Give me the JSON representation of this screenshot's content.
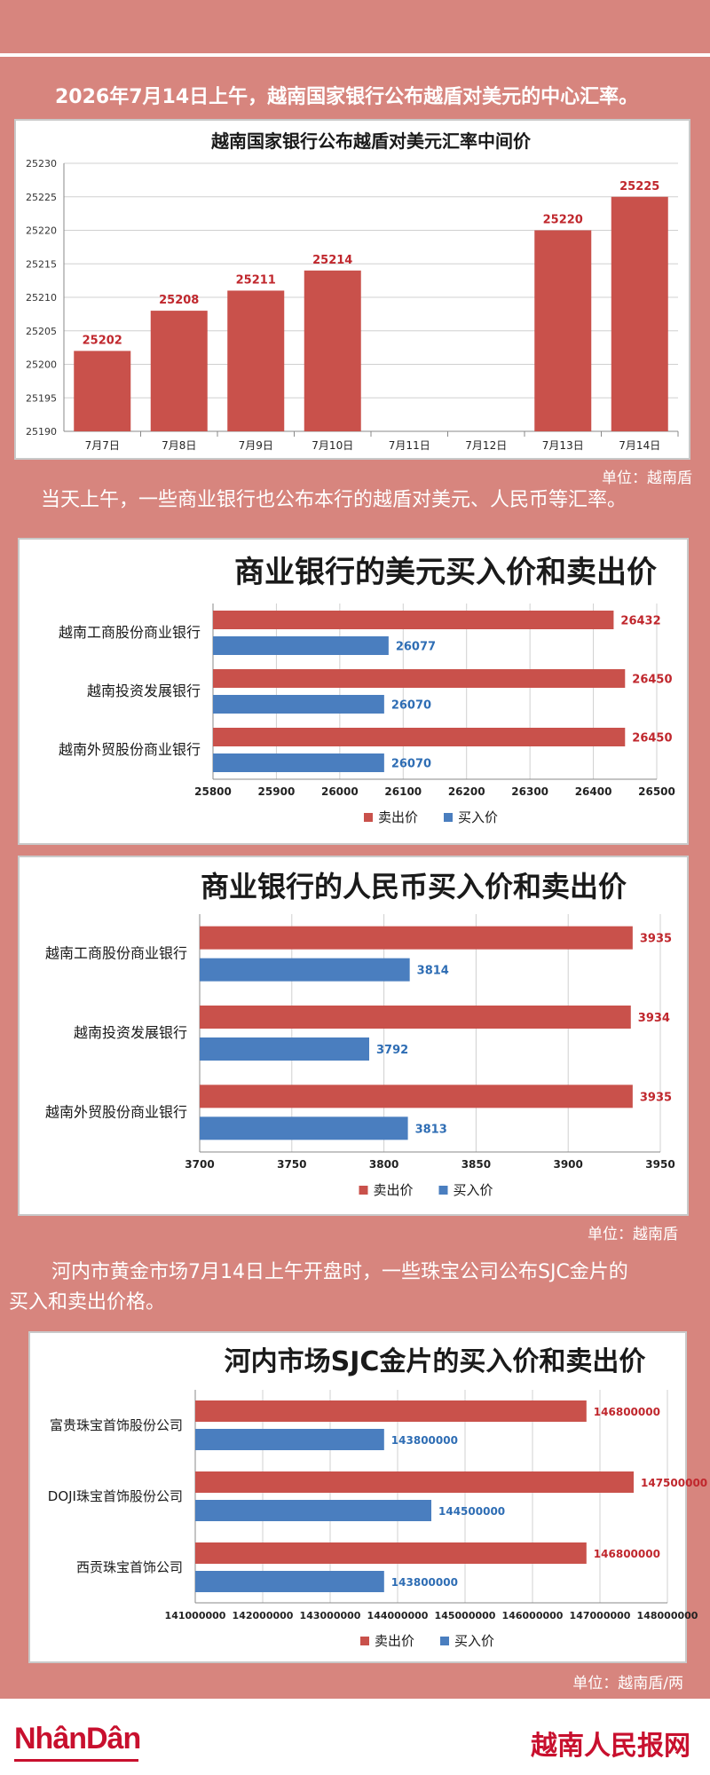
{
  "intro_text": "2026年7月14日上午，越南国家银行公布越盾对美元的中心汇率。",
  "chart1_unit": "单位：越南盾",
  "para2": "当天上午，一些商业银行也公布本行的越盾对美元、人民币等汇率。",
  "chart3_unit": "单位：越南盾",
  "para3_line1": "河内市黄金市场7月14日上午开盘时，一些珠宝公司公布SJC金片的",
  "para3_line2": "买入和卖出价格。",
  "chart4_unit": "单位：越南盾/两",
  "footer": {
    "logo": "NhânDân",
    "site": "越南人民报网"
  },
  "colors": {
    "sell": "#c9514b",
    "buy": "#4a7ebf",
    "sell_label": "#c0272d",
    "buy_label": "#2e6db4"
  },
  "chart_data": [
    {
      "type": "bar",
      "title": "越南国家银行公布越盾对美元汇率中间价",
      "categories": [
        "7月7日",
        "7月8日",
        "7月9日",
        "7月10日",
        "7月11日",
        "7月12日",
        "7月13日",
        "7月14日"
      ],
      "values": [
        25202,
        25208,
        25211,
        25214,
        null,
        null,
        25220,
        25225
      ],
      "value_labels": [
        "25202",
        "25208",
        "25211",
        "25214",
        "",
        "",
        "25220",
        "25225"
      ],
      "ylim": [
        25190,
        25230
      ],
      "yticks": [
        "25190",
        "25195",
        "25200",
        "25205",
        "25210",
        "25215",
        "25220",
        "25225",
        "25230"
      ],
      "grid": true
    },
    {
      "type": "bar",
      "orientation": "horizontal",
      "title": "商业银行的美元买入价和卖出价",
      "categories": [
        "越南工商股份商业银行",
        "越南投资发展银行",
        "越南外贸股份商业银行"
      ],
      "series": [
        {
          "name": "卖出价",
          "values": [
            26432,
            26450,
            26450
          ],
          "labels": [
            "26432",
            "26450",
            "26450"
          ]
        },
        {
          "name": "买入价",
          "values": [
            26077,
            26070,
            26070
          ],
          "labels": [
            "26077",
            "26070",
            "26070"
          ]
        }
      ],
      "xlim": [
        25800,
        26500
      ],
      "xticks": [
        "25800",
        "25900",
        "26000",
        "26100",
        "26200",
        "26300",
        "26400",
        "26500"
      ],
      "legend": "bottom",
      "grid": true
    },
    {
      "type": "bar",
      "orientation": "horizontal",
      "title": "商业银行的人民币买入价和卖出价",
      "categories": [
        "越南工商股份商业银行",
        "越南投资发展银行",
        "越南外贸股份商业银行"
      ],
      "series": [
        {
          "name": "卖出价",
          "values": [
            3935,
            3934,
            3935
          ],
          "labels": [
            "3935",
            "3934",
            "3935"
          ]
        },
        {
          "name": "买入价",
          "values": [
            3814,
            3792,
            3813
          ],
          "labels": [
            "3814",
            "3792",
            "3813"
          ]
        }
      ],
      "xlim": [
        3700,
        3950
      ],
      "xticks": [
        "3700",
        "3750",
        "3800",
        "3850",
        "3900",
        "3950"
      ],
      "legend": "bottom",
      "grid": true
    },
    {
      "type": "bar",
      "orientation": "horizontal",
      "title": "河内市场SJC金片的买入价和卖出价",
      "categories": [
        "富贵珠宝首饰股份公司",
        "DOJI珠宝首饰股份公司",
        "西贡珠宝首饰公司"
      ],
      "series": [
        {
          "name": "卖出价",
          "values": [
            146800000,
            147500000,
            146800000
          ],
          "labels": [
            "146800000",
            "147500000",
            "146800000"
          ]
        },
        {
          "name": "买入价",
          "values": [
            143800000,
            144500000,
            143800000
          ],
          "labels": [
            "143800000",
            "144500000",
            "143800000"
          ]
        }
      ],
      "xlim": [
        141000000,
        148000000
      ],
      "xticks": [
        "141000000",
        "142000000",
        "143000000",
        "144000000",
        "145000000",
        "146000000",
        "147000000",
        "148000000"
      ],
      "legend": "bottom",
      "grid": true
    }
  ]
}
